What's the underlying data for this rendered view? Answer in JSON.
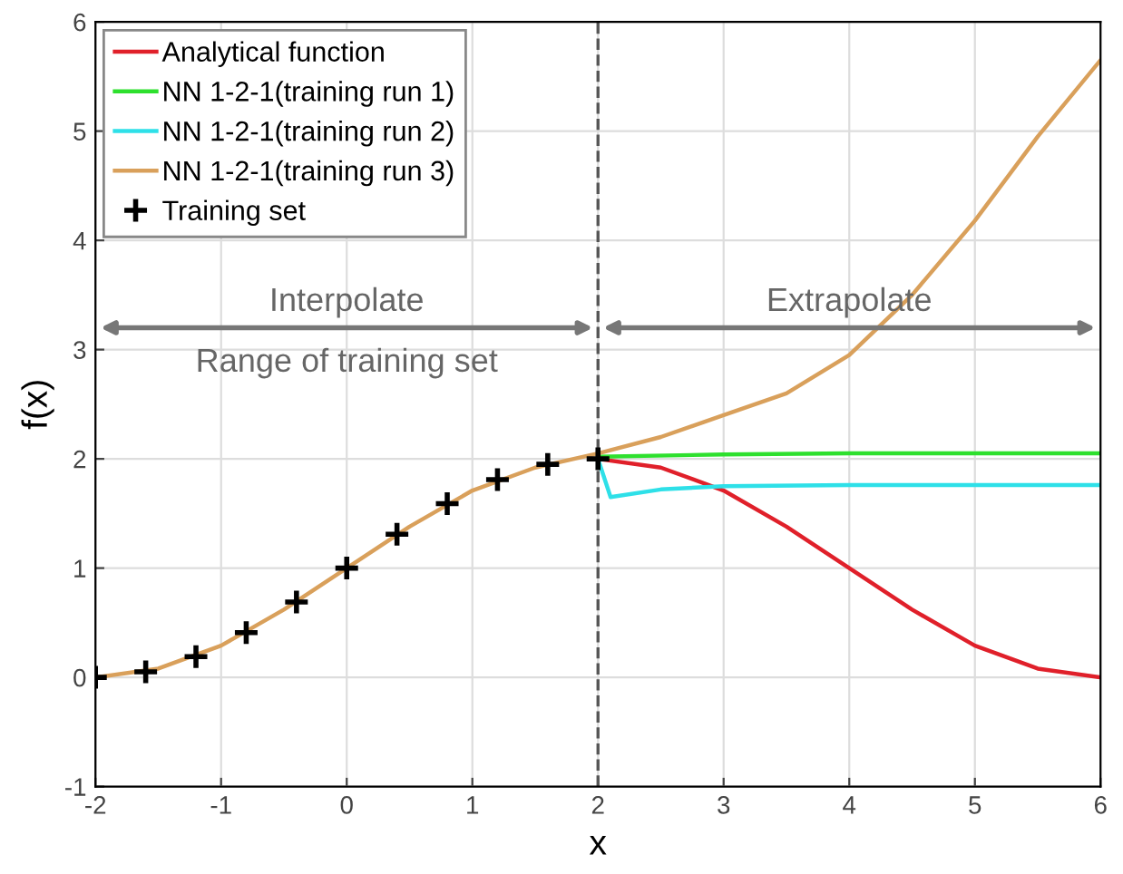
{
  "chart_data": {
    "type": "line",
    "xlabel": "x",
    "ylabel": "f(x)",
    "xlim": [
      -2,
      6
    ],
    "ylim": [
      -1,
      6
    ],
    "xticks": [
      -2,
      -1,
      0,
      1,
      2,
      3,
      4,
      5,
      6
    ],
    "yticks": [
      -1,
      0,
      1,
      2,
      3,
      4,
      5,
      6
    ],
    "grid": true,
    "legend": "top left",
    "series": [
      {
        "name": "Analytical function",
        "color": "#e0202a",
        "x": [
          2,
          2.5,
          3,
          3.5,
          4,
          4.5,
          5,
          5.5,
          6
        ],
        "values": [
          2,
          1.92,
          1.71,
          1.38,
          1,
          0.62,
          0.29,
          0.08,
          0
        ]
      },
      {
        "name": "NN 1-2-1(training run 1)",
        "color": "#2ee02e",
        "x": [
          2,
          3,
          4,
          5,
          6
        ],
        "values": [
          2.02,
          2.04,
          2.05,
          2.05,
          2.05
        ]
      },
      {
        "name": "NN 1-2-1(training run 2)",
        "color": "#2ee0e8",
        "x": [
          2,
          2.1,
          2.5,
          3,
          4,
          5,
          6
        ],
        "values": [
          2,
          1.65,
          1.72,
          1.75,
          1.76,
          1.76,
          1.76
        ]
      },
      {
        "name": "NN 1-2-1(training run 3)",
        "color": "#d9a05b",
        "x": [
          -2,
          -1.5,
          -1,
          -0.5,
          0,
          0.5,
          1,
          1.5,
          2,
          2.5,
          3,
          3.5,
          4,
          4.5,
          5,
          5.5,
          6
        ],
        "values": [
          0,
          0.08,
          0.29,
          0.62,
          1,
          1.38,
          1.71,
          1.92,
          2.05,
          2.2,
          2.4,
          2.6,
          2.95,
          3.5,
          4.18,
          4.95,
          5.65
        ]
      },
      {
        "name": "Training set",
        "type": "scatter",
        "marker": "cross",
        "color": "#000000",
        "x": [
          -2,
          -1.6,
          -1.2,
          -0.8,
          -0.4,
          0,
          0.4,
          0.8,
          1.2,
          1.6,
          2
        ],
        "values": [
          0,
          0.05,
          0.19,
          0.41,
          0.69,
          1,
          1.31,
          1.59,
          1.81,
          1.95,
          2
        ]
      }
    ],
    "ref_lines": [
      {
        "axis": "x",
        "value": 2,
        "line_style": "dashed",
        "color": "#555555"
      }
    ],
    "annotations": [
      "Interpolate",
      "Extrapolate",
      "Range of training set"
    ]
  }
}
